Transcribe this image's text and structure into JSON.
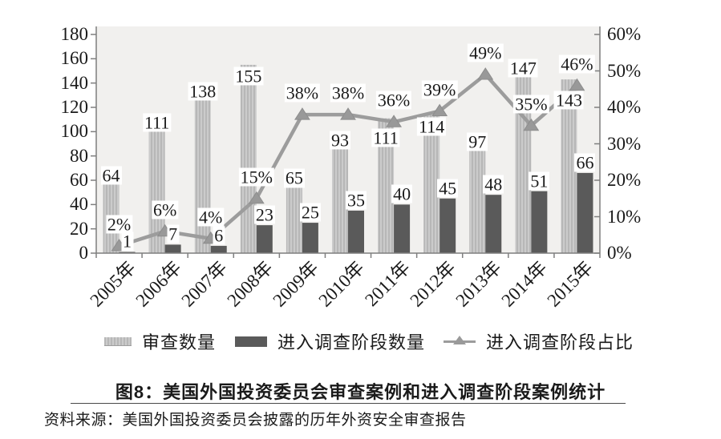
{
  "title": "图8：美国外国投资委员会审查案例和进入调查阶段案例统计",
  "source": "资料来源：美国外国投资委员会披露的历年外资安全审查报告",
  "legend": [
    {
      "label": "审查数量",
      "swatch": "light-bar"
    },
    {
      "label": "进入调查阶段数量",
      "swatch": "dark-bar"
    },
    {
      "label": "进入调查阶段占比",
      "swatch": "line-triangle"
    }
  ],
  "colors": {
    "plot_bg": "#f1f0ee",
    "bar_light": "#cbcbcb",
    "bar_light_stripe": "#b7b7b7",
    "bar_dark": "#5a5a5a",
    "line": "#9c9c9c",
    "marker": "#999999",
    "axis": "#7f7f7f",
    "text": "#1a1a1a"
  },
  "chart_data": {
    "type": "bar",
    "subtype": "bar+line combo, dual axis",
    "categories": [
      "2005年",
      "2006年",
      "2007年",
      "2008年",
      "2009年",
      "2010年",
      "2011年",
      "2012年",
      "2013年",
      "2014年",
      "2015年"
    ],
    "series": [
      {
        "name": "审查数量",
        "type": "bar",
        "axis": "left",
        "values": [
          64,
          111,
          138,
          155,
          65,
          93,
          111,
          114,
          97,
          147,
          143
        ],
        "labels": [
          "64",
          "111",
          "138",
          "155",
          "65",
          "93",
          "111",
          "114",
          "97",
          "147",
          "143"
        ]
      },
      {
        "name": "进入调查阶段数量",
        "type": "bar",
        "axis": "left",
        "values": [
          1,
          7,
          6,
          23,
          25,
          35,
          40,
          45,
          48,
          51,
          66
        ],
        "labels": [
          "1",
          "7",
          "6",
          "23",
          "25",
          "35",
          "40",
          "45",
          "48",
          "51",
          "66"
        ]
      },
      {
        "name": "进入调查阶段占比",
        "type": "line",
        "axis": "right",
        "values": [
          2,
          6,
          4,
          15,
          38,
          38,
          36,
          39,
          49,
          35,
          46
        ],
        "labels": [
          "2%",
          "6%",
          "4%",
          "15%",
          "38%",
          "38%",
          "36%",
          "39%",
          "49%",
          "35%",
          "46%"
        ]
      }
    ],
    "left_axis": {
      "min": 0,
      "max": 180,
      "step": 20,
      "ticks": [
        "180",
        "160",
        "140",
        "120",
        "100",
        "80",
        "60",
        "40",
        "20",
        "0"
      ]
    },
    "right_axis": {
      "min": 0,
      "max": 60,
      "step": 10,
      "ticks": [
        "60%",
        "50%",
        "40%",
        "30%",
        "20%",
        "10%",
        "0%"
      ]
    },
    "grid": false,
    "legend_position": "bottom"
  }
}
